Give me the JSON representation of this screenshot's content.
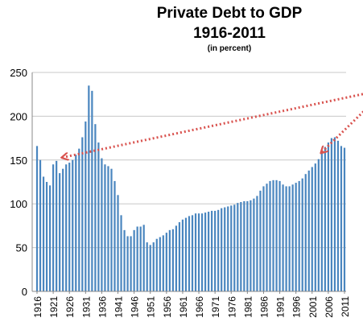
{
  "chart_data": {
    "type": "bar",
    "title_line1": "Private Debt to GDP",
    "title_line2": "1916-2011",
    "subtitle": "(in percent)",
    "xlabel": "",
    "ylabel": "",
    "ylim": [
      0,
      250
    ],
    "yticks": [
      "0",
      "50",
      "100",
      "150",
      "200",
      "250"
    ],
    "xticks": [
      "1916",
      "1921",
      "1926",
      "1931",
      "1936",
      "1941",
      "1946",
      "1951",
      "1956",
      "1961",
      "1966",
      "1971",
      "1976",
      "1981",
      "1986",
      "1991",
      "1996",
      "2001",
      "2006",
      "2011"
    ],
    "grid": true,
    "bar_color": "#4a86bf",
    "annotation_color": "#d9534f",
    "categories": [
      1916,
      1917,
      1918,
      1919,
      1920,
      1921,
      1922,
      1923,
      1924,
      1925,
      1926,
      1927,
      1928,
      1929,
      1930,
      1931,
      1932,
      1933,
      1934,
      1935,
      1936,
      1937,
      1938,
      1939,
      1940,
      1941,
      1942,
      1943,
      1944,
      1945,
      1946,
      1947,
      1948,
      1949,
      1950,
      1951,
      1952,
      1953,
      1954,
      1955,
      1956,
      1957,
      1958,
      1959,
      1960,
      1961,
      1962,
      1963,
      1964,
      1965,
      1966,
      1967,
      1968,
      1969,
      1970,
      1971,
      1972,
      1973,
      1974,
      1975,
      1976,
      1977,
      1978,
      1979,
      1980,
      1981,
      1982,
      1983,
      1984,
      1985,
      1986,
      1987,
      1988,
      1989,
      1990,
      1991,
      1992,
      1993,
      1994,
      1995,
      1996,
      1997,
      1998,
      1999,
      2000,
      2001,
      2002,
      2003,
      2004,
      2005,
      2006,
      2007,
      2008,
      2009,
      2010,
      2011
    ],
    "values": [
      166,
      150,
      131,
      125,
      121,
      145,
      149,
      135,
      140,
      145,
      147,
      150,
      156,
      163,
      176,
      194,
      235,
      229,
      191,
      170,
      152,
      145,
      143,
      140,
      126,
      110,
      87,
      70,
      63,
      63,
      70,
      74,
      74,
      76,
      56,
      53,
      56,
      60,
      62,
      64,
      67,
      70,
      71,
      75,
      79,
      82,
      84,
      86,
      87,
      89,
      89,
      89,
      90,
      91,
      92,
      92,
      93,
      95,
      96,
      97,
      98,
      99,
      101,
      102,
      103,
      103,
      104,
      106,
      109,
      115,
      120,
      123,
      126,
      127,
      127,
      126,
      122,
      120,
      120,
      122,
      124,
      126,
      129,
      134,
      138,
      142,
      146,
      151,
      158,
      165,
      170,
      175,
      176,
      172,
      166,
      164
    ],
    "annotations": [
      {
        "type": "arrow",
        "from": [
          2024,
          231
        ],
        "to": [
          1924,
          153
        ]
      },
      {
        "type": "arrow",
        "from": [
          2024,
          231
        ],
        "to": [
          2004,
          159
        ]
      }
    ]
  }
}
